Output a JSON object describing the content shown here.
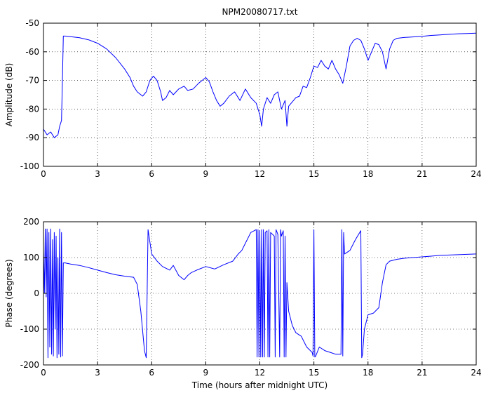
{
  "chart_data": [
    {
      "type": "line",
      "title": "NPM20080717.txt",
      "xlabel": "",
      "ylabel": "Amplitude (dB)",
      "xlim": [
        0,
        24
      ],
      "ylim": [
        -100,
        -50
      ],
      "xticks": [
        "0",
        "3",
        "6",
        "9",
        "12",
        "15",
        "18",
        "21",
        "24"
      ],
      "yticks": [
        "-50",
        "-60",
        "-70",
        "-80",
        "-90",
        "-100"
      ],
      "grid": true,
      "color": "#0000ff",
      "series": [
        {
          "x": [
            0,
            0.2,
            0.4,
            0.6,
            0.8,
            0.9,
            1.0,
            1.05,
            1.1,
            1.2,
            1.5,
            2.0,
            2.5,
            3.0,
            3.5,
            4.0,
            4.5,
            4.8,
            5.0,
            5.2,
            5.5,
            5.7,
            5.9,
            6.1,
            6.3,
            6.5,
            6.6,
            6.8,
            7.0,
            7.2,
            7.5,
            7.8,
            8.0,
            8.3,
            8.6,
            8.8,
            9.0,
            9.2,
            9.4,
            9.6,
            9.8,
            10.0,
            10.3,
            10.6,
            10.9,
            11.2,
            11.5,
            11.8,
            12.0,
            12.1,
            12.2,
            12.4,
            12.6,
            12.8,
            13.0,
            13.2,
            13.4,
            13.5,
            13.6,
            13.8,
            14.0,
            14.2,
            14.4,
            14.6,
            14.8,
            15.0,
            15.2,
            15.4,
            15.6,
            15.8,
            16.0,
            16.2,
            16.4,
            16.6,
            16.8,
            17.0,
            17.2,
            17.4,
            17.6,
            17.8,
            18.0,
            18.2,
            18.4,
            18.6,
            18.8,
            19.0,
            19.2,
            19.4,
            19.6,
            20.0,
            20.5,
            21.0,
            21.5,
            22.0,
            22.5,
            23.0,
            23.5,
            24.0
          ],
          "y": [
            -87,
            -89,
            -88,
            -90,
            -89,
            -86,
            -84,
            -70,
            -54.5,
            -54.5,
            -54.7,
            -55.1,
            -55.8,
            -57,
            -59,
            -62,
            -66,
            -69,
            -72,
            -74,
            -75.5,
            -74,
            -70,
            -68.5,
            -70,
            -74,
            -77,
            -76,
            -73.5,
            -75,
            -73,
            -72,
            -73.5,
            -73,
            -71,
            -70,
            -69,
            -70.5,
            -74,
            -77,
            -79,
            -78,
            -75.5,
            -74,
            -77,
            -73,
            -76,
            -78,
            -82,
            -86,
            -80,
            -76,
            -78,
            -75,
            -74,
            -80,
            -77,
            -86,
            -79,
            -77.5,
            -76,
            -75.5,
            -72,
            -72.5,
            -69,
            -65,
            -65.5,
            -63,
            -65,
            -66,
            -63,
            -66,
            -68,
            -71,
            -65,
            -58,
            -56,
            -55.3,
            -56,
            -59,
            -63,
            -60,
            -57,
            -57.5,
            -60,
            -66,
            -59,
            -56,
            -55.3,
            -55,
            -54.8,
            -54.6,
            -54.3,
            -54.1,
            -53.9,
            -53.7,
            -53.6,
            -53.5
          ]
        }
      ]
    },
    {
      "type": "line",
      "title": "",
      "xlabel": "Time (hours after midnight UTC)",
      "ylabel": "Phase (degrees)",
      "xlim": [
        0,
        24
      ],
      "ylim": [
        -200,
        200
      ],
      "xticks": [
        "0",
        "3",
        "6",
        "9",
        "12",
        "15",
        "18",
        "21",
        "24"
      ],
      "yticks": [
        "200",
        "100",
        "0",
        "-100",
        "-200"
      ],
      "grid": true,
      "color": "#0000ff",
      "series": [
        {
          "x": [
            0,
            0.05,
            0.1,
            0.15,
            0.2,
            0.25,
            0.3,
            0.35,
            0.4,
            0.45,
            0.5,
            0.55,
            0.6,
            0.65,
            0.7,
            0.75,
            0.8,
            0.85,
            0.9,
            0.95,
            1.0,
            1.05,
            1.1,
            1.2,
            1.5,
            2.0,
            2.5,
            3.0,
            3.5,
            4.0,
            4.5,
            5.0,
            5.2,
            5.4,
            5.6,
            5.7,
            5.8,
            6.0,
            6.3,
            6.6,
            7.0,
            7.2,
            7.5,
            7.8,
            8.0,
            8.2,
            8.5,
            9.0,
            9.5,
            10.0,
            10.5,
            10.8,
            11.0,
            11.2,
            11.5,
            11.8,
            11.85,
            11.9,
            11.95,
            12.0,
            12.05,
            12.1,
            12.15,
            12.2,
            12.25,
            12.3,
            12.4,
            12.45,
            12.5,
            12.55,
            12.6,
            12.8,
            12.85,
            12.9,
            13.0,
            13.1,
            13.15,
            13.2,
            13.3,
            13.35,
            13.4,
            13.45,
            13.5,
            13.6,
            13.8,
            14.0,
            14.3,
            14.6,
            14.9,
            14.95,
            15.0,
            15.05,
            15.1,
            15.3,
            15.6,
            15.9,
            16.2,
            16.5,
            16.55,
            16.6,
            16.65,
            16.7,
            17.0,
            17.3,
            17.6,
            17.65,
            17.7,
            17.8,
            18.0,
            18.3,
            18.6,
            18.8,
            19.0,
            19.2,
            19.6,
            20.0,
            20.5,
            21.0,
            21.5,
            22.0,
            22.5,
            23.0,
            23.5,
            24.0
          ],
          "y": [
            120,
            0,
            180,
            -10,
            180,
            -180,
            170,
            -150,
            180,
            -170,
            150,
            -175,
            170,
            -100,
            160,
            -180,
            100,
            -170,
            180,
            -178,
            170,
            -175,
            85,
            85,
            82,
            78,
            72,
            65,
            58,
            52,
            48,
            45,
            25,
            -50,
            -160,
            -180,
            178,
            110,
            90,
            75,
            65,
            78,
            50,
            38,
            50,
            58,
            65,
            75,
            68,
            80,
            90,
            110,
            120,
            140,
            170,
            178,
            -178,
            178,
            -178,
            175,
            -178,
            178,
            -178,
            178,
            -178,
            170,
            175,
            -178,
            178,
            -178,
            170,
            160,
            -178,
            178,
            165,
            -178,
            178,
            160,
            175,
            -178,
            160,
            -178,
            30,
            -50,
            -90,
            -110,
            -120,
            -150,
            -165,
            -175,
            178,
            -178,
            -175,
            -150,
            -160,
            -165,
            -170,
            -170,
            178,
            -175,
            170,
            110,
            120,
            150,
            175,
            -180,
            -170,
            -100,
            -60,
            -55,
            -40,
            30,
            80,
            90,
            95,
            98,
            100,
            102,
            104,
            106,
            107,
            108,
            109,
            110
          ]
        }
      ]
    }
  ]
}
